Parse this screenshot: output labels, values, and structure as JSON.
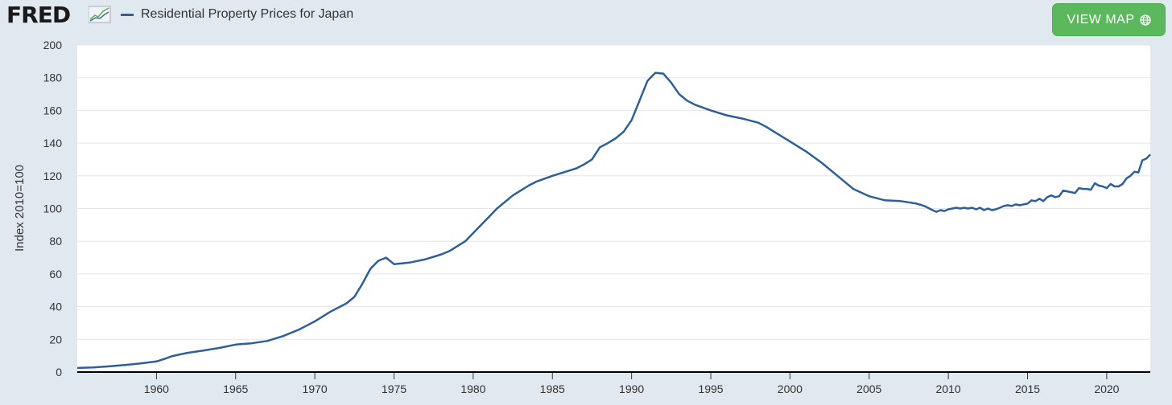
{
  "header": {
    "logo_text": "FRED",
    "view_map_label": "VIEW MAP"
  },
  "colors": {
    "series": "#2f5f98",
    "button": "#5cb85c",
    "background": "#e1e9f0",
    "plot_background": "#ffffff"
  },
  "icons": {
    "logo": "fred-chart-icon",
    "globe": "globe-icon"
  },
  "chart_data": {
    "type": "line",
    "ylabel": "Index 2010=100",
    "ylim": [
      0,
      200
    ],
    "yticks": [
      "0",
      "20",
      "40",
      "60",
      "80",
      "100",
      "120",
      "140",
      "160",
      "180",
      "200"
    ],
    "xlim": [
      1955.0,
      2022.75
    ],
    "xticks": [
      "1960",
      "1965",
      "1970",
      "1975",
      "1980",
      "1985",
      "1990",
      "1995",
      "2000",
      "2005",
      "2010",
      "2015",
      "2020"
    ],
    "grid": true,
    "legend_position": "top-left",
    "series": [
      {
        "name": "Residential Property Prices for Japan",
        "color": "#2f5f98",
        "x": [
          1955.0,
          1956.0,
          1957.0,
          1958.0,
          1959.0,
          1960.0,
          1960.5,
          1961.0,
          1961.5,
          1962.0,
          1963.0,
          1964.0,
          1965.0,
          1966.0,
          1967.0,
          1968.0,
          1969.0,
          1970.0,
          1971.0,
          1972.0,
          1972.5,
          1973.0,
          1973.5,
          1974.0,
          1974.5,
          1975.0,
          1976.0,
          1977.0,
          1978.0,
          1978.5,
          1979.0,
          1979.5,
          1980.0,
          1980.5,
          1981.0,
          1981.5,
          1982.0,
          1982.5,
          1983.0,
          1983.5,
          1984.0,
          1985.0,
          1986.0,
          1986.5,
          1987.0,
          1987.5,
          1988.0,
          1988.5,
          1989.0,
          1989.5,
          1990.0,
          1990.5,
          1991.0,
          1991.5,
          1992.0,
          1992.5,
          1993.0,
          1993.5,
          1994.0,
          1995.0,
          1996.0,
          1997.0,
          1998.0,
          1998.5,
          1999.0,
          2000.0,
          2001.0,
          2002.0,
          2003.0,
          2004.0,
          2005.0,
          2006.0,
          2007.0,
          2008.0,
          2008.5,
          2009.0,
          2009.25,
          2009.5,
          2009.75,
          2010.0,
          2010.25,
          2010.5,
          2010.75,
          2011.0,
          2011.25,
          2011.5,
          2011.75,
          2012.0,
          2012.25,
          2012.5,
          2012.75,
          2013.0,
          2013.25,
          2013.5,
          2013.75,
          2014.0,
          2014.25,
          2014.5,
          2014.75,
          2015.0,
          2015.25,
          2015.5,
          2015.75,
          2016.0,
          2016.25,
          2016.5,
          2016.75,
          2017.0,
          2017.25,
          2017.5,
          2017.75,
          2018.0,
          2018.25,
          2018.5,
          2018.75,
          2019.0,
          2019.25,
          2019.5,
          2019.75,
          2020.0,
          2020.25,
          2020.5,
          2020.75,
          2021.0,
          2021.25,
          2021.5,
          2021.75,
          2022.0,
          2022.25,
          2022.5,
          2022.75
        ],
        "values": [
          2.5,
          2.8,
          3.5,
          4.3,
          5.3,
          6.5,
          8.0,
          9.8,
          10.8,
          11.8,
          13.2,
          14.8,
          16.8,
          17.6,
          19.0,
          22.0,
          26.0,
          31.0,
          37.0,
          42.0,
          46.0,
          54.0,
          63.0,
          68.0,
          70.0,
          66.0,
          67.0,
          69.0,
          72.0,
          74.0,
          77.0,
          80.0,
          85.0,
          90.0,
          95.0,
          100.0,
          104.0,
          108.0,
          111.0,
          114.0,
          116.5,
          120.0,
          123.0,
          124.5,
          127.0,
          130.0,
          137.5,
          140.0,
          143.0,
          147.0,
          154.0,
          166.0,
          178.0,
          183.0,
          182.5,
          177.0,
          170.0,
          166.0,
          163.5,
          160.0,
          157.0,
          155.0,
          152.5,
          150.0,
          147.0,
          141.0,
          135.0,
          128.0,
          120.0,
          112.0,
          107.5,
          105.0,
          104.5,
          103.0,
          101.5,
          99.0,
          98.0,
          99.0,
          98.5,
          99.5,
          100.0,
          100.5,
          100.0,
          100.5,
          100.0,
          100.5,
          99.5,
          100.5,
          99.0,
          100.0,
          99.0,
          99.5,
          100.5,
          101.5,
          102.0,
          101.5,
          102.5,
          102.0,
          102.5,
          103.0,
          105.0,
          104.5,
          106.0,
          104.5,
          107.0,
          108.0,
          107.0,
          107.5,
          111.0,
          110.5,
          110.0,
          109.5,
          112.5,
          112.0,
          112.0,
          111.5,
          115.5,
          114.0,
          113.5,
          112.5,
          115.0,
          113.5,
          113.5,
          115.0,
          118.5,
          120.0,
          122.5,
          122.0,
          129.5,
          130.5,
          133.0
        ]
      }
    ]
  }
}
